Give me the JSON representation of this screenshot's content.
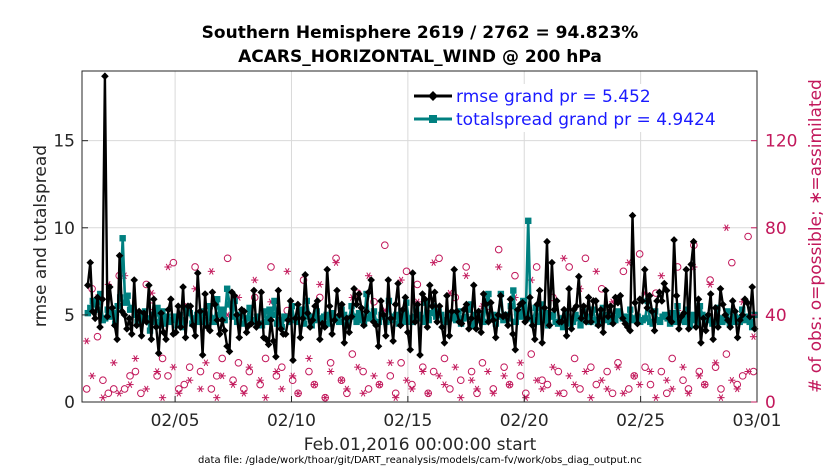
{
  "chart_data": {
    "type": "line",
    "title_line1": "Southern Hemisphere 2619 / 2762 = 94.823%",
    "title_line2": "ACARS_HORIZONTAL_WIND @ 200 hPa",
    "ylabel_left": "rmse and totalspread",
    "ylabel_right": "# of obs: o=possible; ∗=assimilated",
    "xlabel": "Feb.01,2016 00:00:00 start",
    "footnote": "data file: /glade/work/thoar/git/DART_reanalysis/models/cam-fv/work/obs_diag_output.nc",
    "xlim": [
      1,
      30
    ],
    "ylim_left": [
      0,
      19
    ],
    "ylim_right": [
      0,
      152
    ],
    "x_ticks": [
      {
        "value": 5,
        "label": "02/05"
      },
      {
        "value": 10,
        "label": "02/10"
      },
      {
        "value": 15,
        "label": "02/15"
      },
      {
        "value": 20,
        "label": "02/20"
      },
      {
        "value": 25,
        "label": "02/25"
      },
      {
        "value": 30,
        "label": "03/01"
      }
    ],
    "y_ticks_left": [
      0,
      5,
      10,
      15
    ],
    "y_ticks_right": [
      0,
      40,
      80,
      120
    ],
    "grid": true,
    "legend_position": "top-right",
    "series": [
      {
        "name": "rmse grand pr = 5.452",
        "color": "#000000",
        "marker": "diamond",
        "values": [
          6.7,
          8.0,
          5.2,
          4.8,
          6.0,
          4.3,
          5.9,
          18.7,
          4.9,
          6.6,
          5.4,
          4.4,
          3.6,
          8.4,
          5.2,
          5.0,
          4.2,
          4.8,
          3.9,
          7.0,
          4.4,
          5.2,
          3.8,
          5.1,
          4.6,
          6.7,
          3.6,
          5.9,
          4.3,
          2.8,
          5.1,
          4.0,
          3.6,
          5.3,
          5.9,
          3.9,
          4.0,
          5.5,
          4.3,
          6.6,
          3.7,
          5.5,
          5.5,
          4.4,
          3.8,
          7.4,
          5.2,
          2.7,
          6.2,
          4.3,
          4.1,
          6.3,
          5.6,
          4.7,
          3.9,
          4.7,
          4.1,
          3.2,
          2.9,
          6.3,
          6.1,
          5.0,
          3.7,
          5.3,
          5.2,
          4.0,
          4.4,
          4.5,
          6.4,
          4.3,
          4.5,
          6.3,
          3.7,
          3.6,
          3.3,
          4.7,
          3.5,
          2.6,
          6.4,
          4.2,
          3.9,
          3.9,
          4.7,
          5.8,
          2.4,
          4.8,
          5.6,
          3.7,
          4.8,
          7.3,
          5.1,
          4.3,
          4.7,
          5.5,
          5.8,
          3.6,
          4.5,
          4.3,
          7.6,
          5.5,
          3.9,
          4.7,
          6.4,
          5.0,
          5.6,
          3.4,
          4.8,
          4.0,
          4.9,
          6.5,
          5.6,
          6.2,
          5.4,
          4.4,
          5.2,
          6.3,
          7.0,
          4.6,
          4.4,
          3.2,
          5.8,
          5.0,
          3.8,
          7.0,
          4.8,
          3.5,
          5.6,
          6.8,
          4.4,
          5.3,
          6.0,
          4.0,
          3.0,
          7.4,
          4.6,
          5.6,
          2.7,
          6.2,
          5.9,
          4.3,
          6.7,
          5.5,
          6.3,
          4.6,
          5.5,
          4.3,
          3.4,
          6.1,
          3.8,
          5.2,
          7.6,
          5.2,
          4.6,
          4.5,
          5.3,
          5.6,
          4.2,
          4.8,
          6.7,
          4.2,
          5.2,
          4.0,
          6.2,
          5.6,
          4.6,
          5.7,
          4.7,
          3.7,
          5.0,
          6.1,
          4.9,
          5.0,
          4.4,
          5.9,
          3.9,
          3.0,
          5.3,
          5.6,
          5.7,
          4.6,
          4.8,
          6.0,
          4.4,
          3.6,
          5.6,
          6.4,
          3.4,
          5.4,
          9.2,
          4.4,
          8.0,
          5.3,
          5.8,
          4.6,
          4.6,
          5.3,
          3.8,
          6.5,
          4.2,
          5.3,
          5.5,
          7.2,
          4.8,
          5.5,
          4.6,
          6.0,
          4.6,
          5.8,
          5.8,
          4.4,
          5.3,
          4.0,
          6.4,
          4.9,
          5.5,
          4.5,
          6.0,
          5.7,
          6.1,
          4.8,
          4.5,
          4.3,
          4.1,
          10.7,
          5.7,
          4.5,
          5.9,
          5.8,
          7.6,
          5.4,
          6.1,
          5.2,
          4.1,
          5.8,
          6.3,
          5.8,
          6.8,
          6.4,
          4.8,
          4.6,
          9.3,
          6.1,
          4.2,
          4.9,
          5.1,
          7.6,
          4.2,
          7.9,
          9.2,
          4.3,
          5.9,
          3.4,
          4.8,
          4.1,
          5.0,
          6.2,
          3.6,
          5.4,
          4.3,
          6.5,
          5.6,
          5.0,
          4.7,
          4.3,
          5.8,
          5.2,
          3.7,
          4.7,
          5.0,
          5.9,
          5.7,
          4.9,
          6.6,
          4.2
        ]
      },
      {
        "name": "totalspread grand pr = 4.9424",
        "color": "#008080",
        "marker": "square",
        "values": [
          5.1,
          5.4,
          5.8,
          5.6,
          5.3,
          6.2,
          4.7,
          4.8,
          5.3,
          4.9,
          5.1,
          4.5,
          5.5,
          6.0,
          9.4,
          5.7,
          6.1,
          5.3,
          5.4,
          5.0,
          4.6,
          4.5,
          4.9,
          5.2,
          4.8,
          4.1,
          5.0,
          4.6,
          5.4,
          4.4,
          5.2,
          4.5,
          4.9,
          4.6,
          4.7,
          4.9,
          4.4,
          5.0,
          4.3,
          4.7,
          5.3,
          5.1,
          4.5,
          4.8,
          5.0,
          4.6,
          5.2,
          4.7,
          4.4,
          5.5,
          4.8,
          4.6,
          5.9,
          5.0,
          5.3,
          4.7,
          6.5,
          5.6,
          4.9,
          5.8,
          4.6,
          5.0,
          5.1,
          4.5,
          4.8,
          5.4,
          4.6,
          4.7,
          4.9,
          4.5,
          4.4,
          5.2,
          4.6,
          5.3,
          5.0,
          5.8,
          4.5,
          4.7,
          4.3,
          4.9,
          4.8,
          4.6,
          5.5,
          4.7,
          4.6,
          5.0,
          5.3,
          4.5,
          5.8,
          4.9,
          4.4,
          4.7,
          5.2,
          4.8,
          4.6,
          4.9,
          5.0,
          4.5,
          5.1,
          4.8,
          4.7,
          4.6,
          5.3,
          5.0,
          4.4,
          4.8,
          5.5,
          4.9,
          4.6,
          5.1,
          4.7,
          4.5,
          6.2,
          4.8,
          5.0,
          5.2,
          4.5,
          4.6,
          5.0,
          4.9,
          4.6,
          5.8,
          4.7,
          4.9,
          5.0,
          4.5,
          5.2,
          4.6,
          5.7,
          4.8,
          4.6,
          4.9,
          5.3,
          5.0,
          4.8,
          4.6,
          5.7,
          4.7,
          5.1,
          5.5,
          4.9,
          5.2,
          5.0,
          4.7,
          4.6,
          5.0,
          4.8,
          5.1,
          4.7,
          5.2,
          4.5,
          4.8,
          4.9,
          5.3,
          5.6,
          4.4,
          5.0,
          4.7,
          4.9,
          4.6,
          5.7,
          6.2,
          4.8,
          5.0,
          4.5,
          4.9,
          6.2,
          4.7,
          5.0,
          4.8,
          5.5,
          6.4,
          4.6,
          5.1,
          4.9,
          5.8,
          5.0,
          10.4,
          4.8,
          4.7,
          5.4,
          4.6,
          5.6,
          4.7,
          5.1,
          4.4,
          4.9,
          5.0,
          4.6,
          4.5,
          4.8,
          4.3,
          5.1,
          4.9,
          4.5,
          4.6,
          5.0,
          4.8,
          4.4,
          5.2,
          4.7,
          4.9,
          4.6,
          5.3,
          4.7,
          4.5,
          4.9,
          5.4,
          4.7,
          5.0,
          4.6,
          4.8,
          4.7,
          5.2,
          5.0,
          4.8,
          4.9,
          4.6,
          5.3,
          4.7,
          4.8,
          4.9,
          4.6,
          4.7,
          4.8,
          5.8,
          4.6,
          4.5,
          5.2,
          4.7,
          4.6,
          4.9,
          5.0,
          4.8,
          4.5,
          5.1,
          4.6,
          5.5,
          4.7,
          4.8,
          4.6,
          5.3,
          4.4,
          5.0,
          4.7,
          4.5,
          5.5,
          5.0,
          4.6,
          4.9,
          4.7,
          4.5,
          4.6,
          5.4,
          4.8,
          4.6,
          4.7,
          5.2,
          4.5,
          4.6,
          4.9,
          4.8,
          4.6,
          5.3,
          4.7,
          4.9,
          4.6,
          4.3,
          5.0
        ]
      },
      {
        "name": "possible",
        "color": "#c2185b",
        "marker": "circle",
        "axis": "right",
        "values": [
          6,
          52,
          30,
          10,
          4,
          6,
          58,
          6,
          12,
          14,
          4,
          54,
          44,
          12,
          20,
          12,
          64,
          6,
          8,
          16,
          62,
          14,
          40,
          6,
          12,
          20,
          66,
          10,
          18,
          6,
          14,
          48,
          8,
          20,
          62,
          12,
          16,
          42,
          10,
          4,
          56,
          14,
          8,
          48,
          2,
          18,
          66,
          10,
          4,
          22,
          50,
          14,
          6,
          46,
          8,
          72,
          12,
          4,
          18,
          60,
          8,
          54,
          16,
          4,
          14,
          66,
          20,
          6,
          48,
          10,
          62,
          14,
          4,
          18,
          44,
          6,
          70,
          16,
          8,
          58,
          12,
          4,
          22,
          62,
          10,
          8,
          48,
          14,
          4,
          62,
          20,
          6,
          66,
          16,
          8,
          52,
          14,
          4,
          18,
          60,
          6,
          12,
          68,
          16,
          8,
          50,
          14,
          4,
          20,
          62,
          10,
          6,
          72,
          14,
          8,
          56,
          16,
          6,
          22,
          64,
          8,
          12,
          76,
          14
        ]
      },
      {
        "name": "assimilated",
        "color": "#c2185b",
        "marker": "star",
        "axis": "right",
        "values": [
          28,
          12,
          48,
          2,
          54,
          18,
          4,
          58,
          8,
          20,
          38,
          6,
          50,
          14,
          2,
          62,
          16,
          4,
          44,
          10,
          52,
          6,
          18,
          60,
          2,
          12,
          40,
          8,
          48,
          4,
          16,
          56,
          10,
          2,
          46,
          14,
          6,
          60,
          12,
          4,
          42,
          20,
          8,
          54,
          2,
          14,
          64,
          10,
          6,
          48,
          16,
          4,
          58,
          12,
          8,
          42,
          18,
          2,
          56,
          10,
          6,
          46,
          14,
          4,
          64,
          12,
          8,
          50,
          16,
          2,
          58,
          10,
          6,
          44,
          14,
          4,
          62,
          12,
          8,
          48,
          18,
          2,
          56,
          10,
          6,
          40,
          16,
          4,
          66,
          12,
          8,
          52,
          14,
          2,
          60,
          10,
          6,
          46,
          16,
          4,
          64,
          12,
          8,
          50,
          14,
          2,
          58,
          10,
          6,
          42,
          16,
          4,
          62,
          12,
          8,
          54,
          18,
          2,
          80,
          10,
          6,
          46,
          14,
          30
        ]
      }
    ]
  }
}
